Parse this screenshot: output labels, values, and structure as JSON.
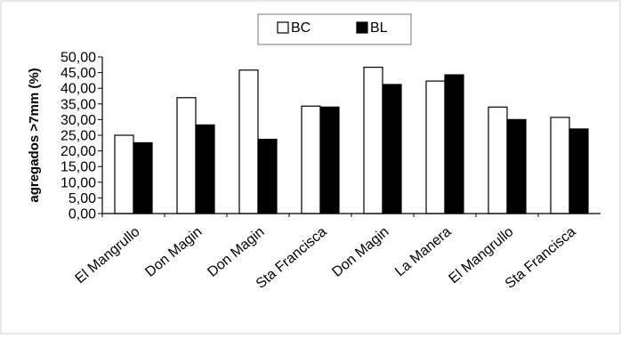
{
  "chart_data": {
    "type": "bar",
    "title": "",
    "xlabel": "",
    "ylabel": "agregados >7mm (%)",
    "ylim": [
      0,
      50
    ],
    "ytick_step": 5,
    "ytick_labels": [
      "0,00",
      "5,00",
      "10,00",
      "15,00",
      "20,00",
      "25,00",
      "30,00",
      "35,00",
      "40,00",
      "45,00",
      "50,00"
    ],
    "grid": false,
    "legend_position": "top-center",
    "categories": [
      "El Mangrullo",
      "Don Magin",
      "Don Magin",
      "Sta Francisca",
      "Don Magin",
      "La Manera",
      "El Mangrullo",
      "Sta Francisca"
    ],
    "series": [
      {
        "name": "BC",
        "color": "#ffffff",
        "values": [
          25.0,
          37.0,
          45.8,
          34.3,
          46.7,
          42.3,
          34.0,
          30.7
        ]
      },
      {
        "name": "BL",
        "color": "#000000",
        "values": [
          22.6,
          28.3,
          23.7,
          34.0,
          41.2,
          44.3,
          30.0,
          27.0
        ]
      }
    ]
  }
}
